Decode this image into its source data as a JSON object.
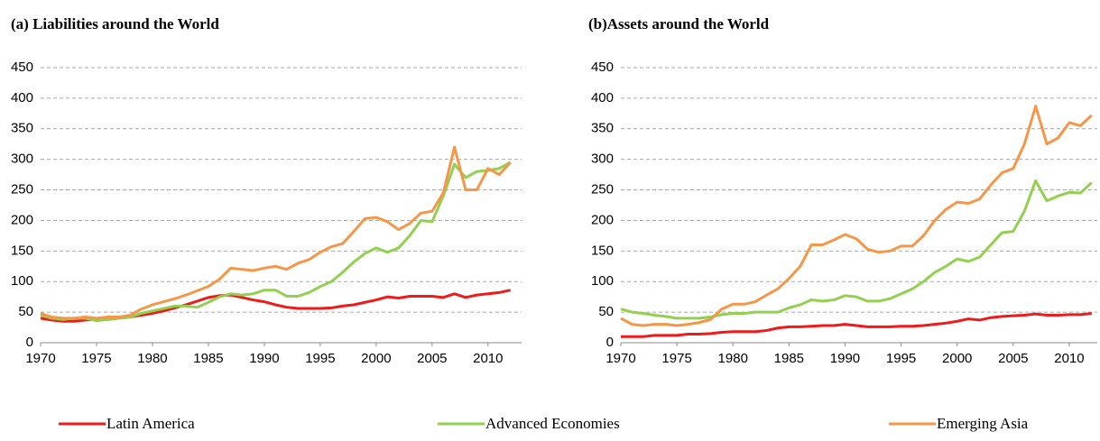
{
  "chart_data": [
    {
      "type": "line",
      "title": "(a)   Liabilities around the World",
      "x": [
        1970,
        1971,
        1972,
        1973,
        1974,
        1975,
        1976,
        1977,
        1978,
        1979,
        1980,
        1981,
        1982,
        1983,
        1984,
        1985,
        1986,
        1987,
        1988,
        1989,
        1990,
        1991,
        1992,
        1993,
        1994,
        1995,
        1996,
        1997,
        1998,
        1999,
        2000,
        2001,
        2002,
        2003,
        2004,
        2005,
        2006,
        2007,
        2008,
        2009,
        2010,
        2011,
        2012
      ],
      "xlim": [
        1970,
        2013
      ],
      "xticks": [
        1970,
        1975,
        1980,
        1985,
        1990,
        1995,
        2000,
        2005,
        2010
      ],
      "ylim": [
        0,
        450
      ],
      "yticks": [
        0,
        50,
        100,
        150,
        200,
        250,
        300,
        350,
        400,
        450
      ],
      "grid": true,
      "series": [
        {
          "name": "Latin America",
          "color": "#f01a1a",
          "values": [
            40,
            37,
            35,
            35,
            37,
            38,
            38,
            40,
            42,
            45,
            48,
            52,
            57,
            62,
            68,
            74,
            77,
            78,
            74,
            70,
            67,
            62,
            58,
            56,
            56,
            56,
            57,
            60,
            62,
            66,
            70,
            75,
            73,
            76,
            76,
            76,
            74,
            80,
            74,
            78,
            80,
            82,
            86
          ]
        },
        {
          "name": "Advanced Economies",
          "color": "#92d050",
          "values": [
            45,
            40,
            38,
            40,
            40,
            36,
            38,
            40,
            42,
            48,
            52,
            56,
            60,
            60,
            58,
            66,
            75,
            80,
            78,
            80,
            86,
            86,
            76,
            76,
            82,
            92,
            100,
            115,
            132,
            146,
            155,
            148,
            155,
            175,
            200,
            198,
            240,
            292,
            270,
            280,
            282,
            285,
            295
          ]
        },
        {
          "name": "Emerging Asia",
          "color": "#f79646",
          "values": [
            48,
            42,
            40,
            40,
            42,
            40,
            42,
            42,
            45,
            55,
            62,
            67,
            72,
            78,
            85,
            92,
            104,
            122,
            120,
            118,
            122,
            125,
            120,
            130,
            136,
            148,
            157,
            162,
            182,
            203,
            205,
            198,
            185,
            195,
            212,
            215,
            245,
            320,
            250,
            250,
            285,
            275,
            295
          ]
        }
      ]
    },
    {
      "type": "line",
      "title": "(b)Assets around the World",
      "x": [
        1970,
        1971,
        1972,
        1973,
        1974,
        1975,
        1976,
        1977,
        1978,
        1979,
        1980,
        1981,
        1982,
        1983,
        1984,
        1985,
        1986,
        1987,
        1988,
        1989,
        1990,
        1991,
        1992,
        1993,
        1994,
        1995,
        1996,
        1997,
        1998,
        1999,
        2000,
        2001,
        2002,
        2003,
        2004,
        2005,
        2006,
        2007,
        2008,
        2009,
        2010,
        2011,
        2012
      ],
      "xlim": [
        1970,
        2012.5
      ],
      "xticks": [
        1970,
        1975,
        1980,
        1985,
        1990,
        1995,
        2000,
        2005,
        2010
      ],
      "ylim": [
        0,
        450
      ],
      "yticks": [
        0,
        50,
        100,
        150,
        200,
        250,
        300,
        350,
        400,
        450
      ],
      "grid": true,
      "series": [
        {
          "name": "Latin America",
          "color": "#f01a1a",
          "values": [
            10,
            10,
            10,
            12,
            12,
            12,
            14,
            14,
            15,
            17,
            18,
            18,
            18,
            20,
            24,
            26,
            26,
            27,
            28,
            28,
            30,
            28,
            26,
            26,
            26,
            27,
            27,
            28,
            30,
            32,
            35,
            39,
            37,
            41,
            43,
            44,
            45,
            47,
            45,
            45,
            46,
            46,
            48
          ]
        },
        {
          "name": "Advanced Economies",
          "color": "#92d050",
          "values": [
            55,
            50,
            48,
            45,
            43,
            40,
            40,
            40,
            42,
            46,
            48,
            48,
            50,
            50,
            50,
            57,
            62,
            70,
            68,
            70,
            77,
            75,
            68,
            68,
            72,
            80,
            88,
            100,
            115,
            125,
            137,
            133,
            140,
            160,
            180,
            182,
            215,
            265,
            232,
            240,
            246,
            245,
            262
          ]
        },
        {
          "name": "Emerging Asia",
          "color": "#f79646",
          "values": [
            40,
            30,
            28,
            30,
            30,
            28,
            30,
            33,
            38,
            55,
            63,
            63,
            67,
            78,
            88,
            105,
            125,
            160,
            160,
            168,
            177,
            170,
            153,
            148,
            150,
            158,
            158,
            175,
            200,
            218,
            230,
            228,
            235,
            258,
            278,
            285,
            325,
            387,
            325,
            335,
            360,
            355,
            372
          ]
        }
      ]
    }
  ]
}
